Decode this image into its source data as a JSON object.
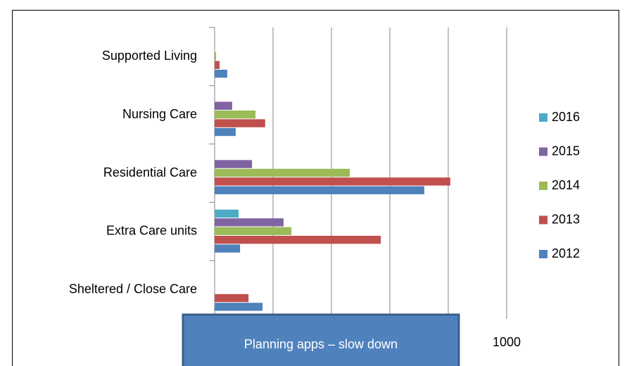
{
  "chart_data": {
    "type": "bar",
    "orientation": "horizontal",
    "categories": [
      "Sheltered / Close Care",
      "Extra Care units",
      "Residential Care",
      "Nursing Care",
      "Supported Living"
    ],
    "series": [
      {
        "name": "2012",
        "color": "#4f81bd",
        "values": [
          164,
          87,
          718,
          72,
          43
        ]
      },
      {
        "name": "2013",
        "color": "#c0504d",
        "values": [
          116,
          569,
          807,
          173,
          17
        ]
      },
      {
        "name": "2014",
        "color": "#9bbb59",
        "values": [
          0,
          263,
          463,
          140,
          5
        ]
      },
      {
        "name": "2015",
        "color": "#8064a2",
        "values": [
          0,
          236,
          128,
          60,
          0
        ]
      },
      {
        "name": "2016",
        "color": "#4bacc6",
        "values": [
          0,
          82,
          0,
          0,
          0
        ]
      }
    ],
    "xlim": [
      0,
      1000
    ],
    "xticks": [
      0,
      200,
      400,
      600,
      800,
      1000
    ],
    "grid": true,
    "legend": "right",
    "annotation": "Planning apps – slow down"
  }
}
